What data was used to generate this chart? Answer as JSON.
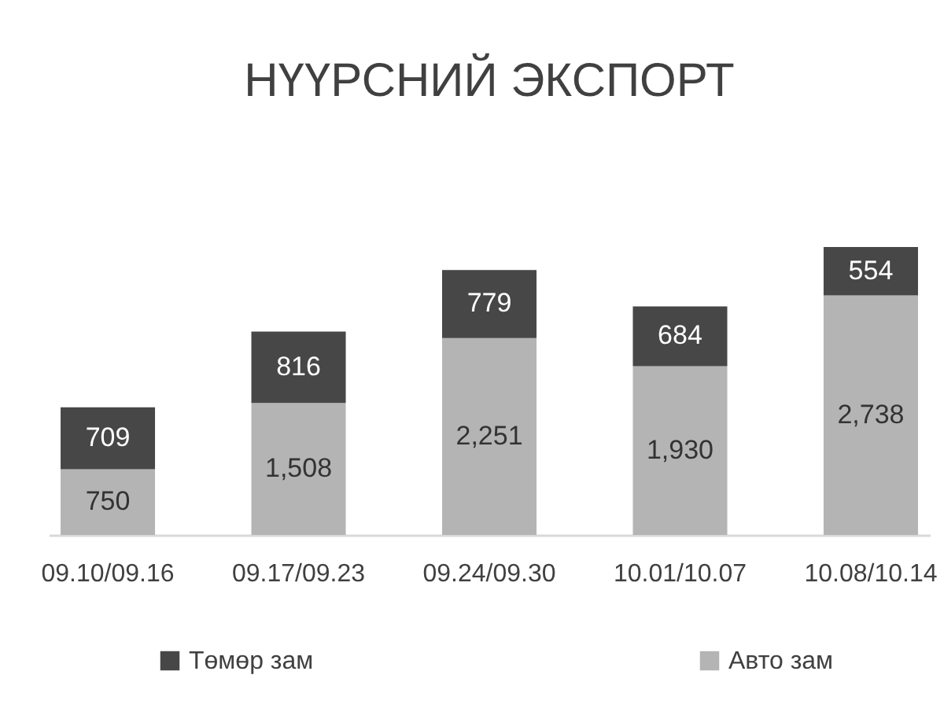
{
  "chart_data": {
    "type": "bar",
    "title": "НҮҮРСНИЙ ЭКСПОРТ",
    "stacked": true,
    "legend": "bottom",
    "categories": [
      "09.10/09.16",
      "09.17/09.23",
      "09.24/09.30",
      "10.01/10.07",
      "10.08/10.14"
    ],
    "series": [
      {
        "name": "Авто зам",
        "color": "#b4b4b4",
        "values": [
          750,
          1508,
          2251,
          1930,
          2738
        ],
        "value_labels": [
          "750",
          "1,508",
          "2,251",
          "1,930",
          "2,738"
        ]
      },
      {
        "name": "Төмөр зам",
        "color": "#474747",
        "values": [
          709,
          816,
          779,
          684,
          554
        ],
        "value_labels": [
          "709",
          "816",
          "779",
          "684",
          "554"
        ]
      }
    ]
  }
}
